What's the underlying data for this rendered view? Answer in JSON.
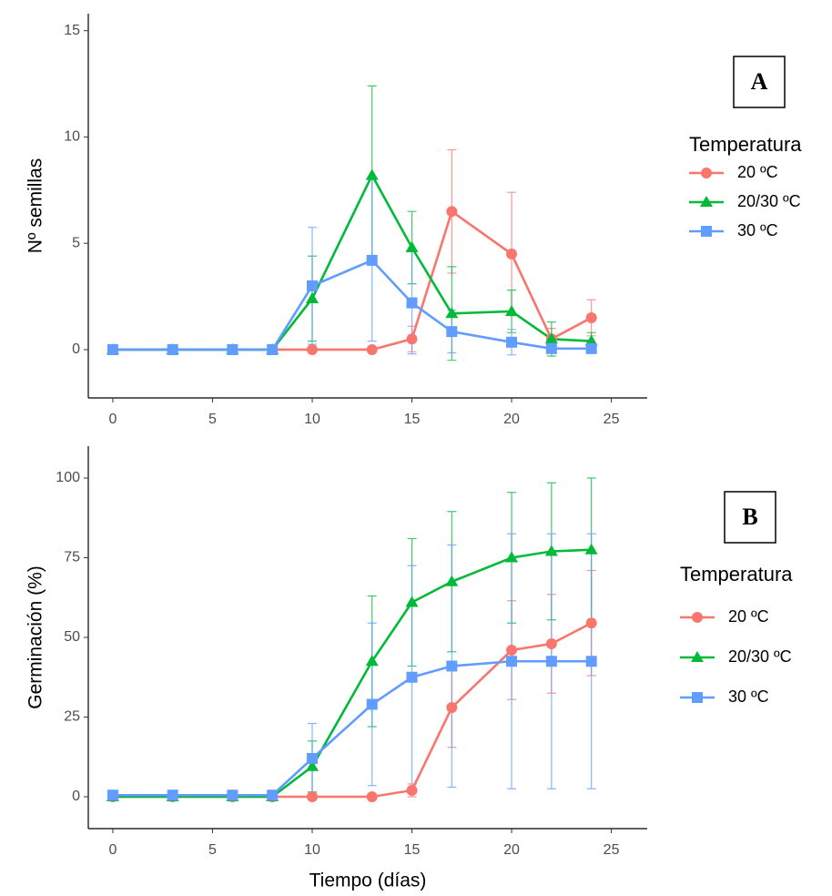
{
  "chart_data": [
    {
      "type": "line",
      "ylabel": "Nº semillas",
      "legend_title": "Temperatura",
      "annotation": "A",
      "x": [
        0,
        3,
        6,
        8,
        10,
        13,
        15,
        17,
        20,
        22,
        24
      ],
      "xlim": [
        -1.23,
        26.8
      ],
      "xticks": [
        0,
        5,
        10,
        15,
        20,
        25
      ],
      "ylim": [
        -2.27,
        15.8
      ],
      "yticks": [
        0,
        5,
        10,
        15
      ],
      "grid": false,
      "series": [
        {
          "name": "20 ºC",
          "color": "#F8766D",
          "shape": "circle",
          "values": [
            0,
            0,
            0,
            0,
            0,
            0,
            0.5,
            6.5,
            4.5,
            0.5,
            1.5
          ],
          "errors": [
            0,
            0,
            0,
            0,
            0,
            0,
            0.6,
            2.9,
            2.9,
            0.5,
            0.85
          ]
        },
        {
          "name": "20/30 ºC",
          "color": "#00BA38",
          "shape": "triangle",
          "values": [
            0,
            0,
            0,
            0,
            2.4,
            8.2,
            4.8,
            1.7,
            1.8,
            0.5,
            0.4
          ],
          "errors": [
            0,
            0,
            0,
            0,
            2.0,
            4.2,
            1.7,
            2.2,
            1.0,
            0.8,
            0.4
          ]
        },
        {
          "name": "30 ºC",
          "color": "#619CFF",
          "shape": "square",
          "values": [
            0,
            0,
            0,
            0,
            3.0,
            4.2,
            2.2,
            0.85,
            0.35,
            0.05,
            0.05
          ],
          "errors": [
            0,
            0,
            0,
            0,
            2.75,
            3.8,
            2.4,
            1.0,
            0.6,
            0.1,
            0.1
          ]
        }
      ]
    },
    {
      "type": "line",
      "xlabel": "Tiempo (días)",
      "ylabel": "Germinación (%)",
      "legend_title": "Temperatura",
      "annotation": "B",
      "x": [
        0,
        3,
        6,
        8,
        10,
        13,
        15,
        17,
        20,
        22,
        24
      ],
      "xlim": [
        -1.23,
        26.8
      ],
      "xticks": [
        0,
        5,
        10,
        15,
        20,
        25
      ],
      "ylim": [
        -10,
        110
      ],
      "yticks": [
        0,
        25,
        50,
        75,
        100
      ],
      "grid": false,
      "series": [
        {
          "name": "20 ºC",
          "color": "#F8766D",
          "shape": "circle",
          "values": [
            0,
            0,
            0,
            0,
            0,
            0,
            2,
            28,
            46,
            48,
            54.5
          ],
          "errors": [
            0,
            0,
            0,
            0,
            0,
            0,
            2,
            12.5,
            15.5,
            15.5,
            16.5
          ]
        },
        {
          "name": "20/30 ºC",
          "color": "#00BA38",
          "shape": "triangle",
          "values": [
            0,
            0,
            0,
            0,
            9.5,
            42.5,
            61,
            67.5,
            75,
            77,
            77.5
          ],
          "errors": [
            0,
            0,
            0,
            0,
            8,
            20.5,
            20,
            22,
            20.5,
            21.5,
            22.5
          ]
        },
        {
          "name": "30 ºC",
          "color": "#619CFF",
          "shape": "square",
          "values": [
            0.5,
            0.5,
            0.5,
            0.5,
            12,
            29,
            37.5,
            41,
            42.5,
            42.5,
            42.5
          ],
          "errors": [
            0,
            0,
            0,
            0,
            11,
            25.5,
            35,
            38,
            40,
            40,
            40
          ]
        }
      ]
    }
  ]
}
